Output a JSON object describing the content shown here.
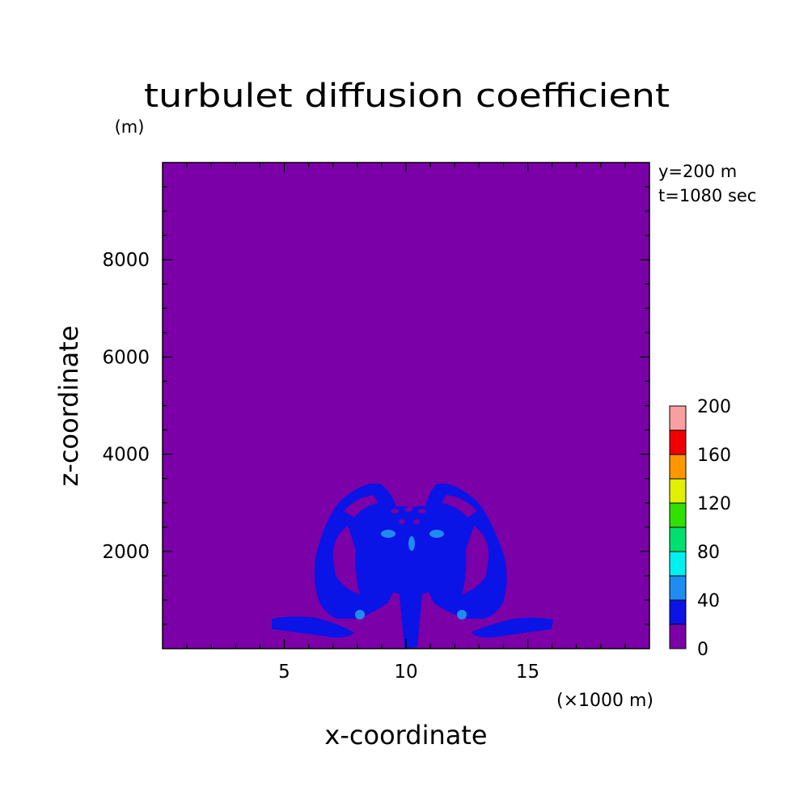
{
  "chart_data": {
    "type": "heatmap",
    "title": "turbulet diffusion coefficient",
    "ylabel": "z-coordinate",
    "yunit": "(m)",
    "xlabel": "x-coordinate",
    "xunit": "(×1000 m)",
    "annotations": [
      "y=200 m",
      "t=1080 sec"
    ],
    "xlim": [
      0,
      20
    ],
    "ylim": [
      0,
      10000
    ],
    "xticks": [
      5,
      10,
      15
    ],
    "xtick_labels": [
      "5",
      "10",
      "15"
    ],
    "yticks": [
      2000,
      4000,
      6000,
      8000
    ],
    "ytick_labels": [
      "2000",
      "4000",
      "6000",
      "8000"
    ],
    "colorbar": {
      "levels": [
        0,
        20,
        40,
        60,
        80,
        100,
        120,
        140,
        160,
        180,
        200
      ],
      "tick_labels": [
        "0",
        "40",
        "80",
        "120",
        "160",
        "200"
      ],
      "colors": [
        "#7b00a8",
        "#0a14e6",
        "#1e8cf0",
        "#00f0f0",
        "#00e070",
        "#30e000",
        "#e0f000",
        "#ff9800",
        "#f00000",
        "#f8a0a0"
      ]
    },
    "background_level": "0-20",
    "features": [
      {
        "level": "20-40",
        "description": "left lobe",
        "x": [
          5.8,
          8.6
        ],
        "z": [
          300,
          3400
        ]
      },
      {
        "level": "20-40",
        "description": "right lobe",
        "x": [
          11.5,
          14.3
        ],
        "z": [
          300,
          3400
        ]
      },
      {
        "level": "20-40",
        "description": "central column",
        "x": [
          9.6,
          10.6
        ],
        "z": [
          0,
          2900
        ]
      },
      {
        "level": "20-40",
        "description": "left surface band",
        "x": [
          4.6,
          8.3
        ],
        "z": [
          200,
          650
        ]
      },
      {
        "level": "20-40",
        "description": "right surface band",
        "x": [
          12.6,
          16.0
        ],
        "z": [
          200,
          650
        ]
      },
      {
        "level": "40-60",
        "description": "small patches",
        "points": [
          [
            8.3,
            2350
          ],
          [
            10.2,
            2200
          ],
          [
            12.0,
            2350
          ],
          [
            7.9,
            700
          ],
          [
            12.2,
            700
          ]
        ]
      }
    ]
  }
}
